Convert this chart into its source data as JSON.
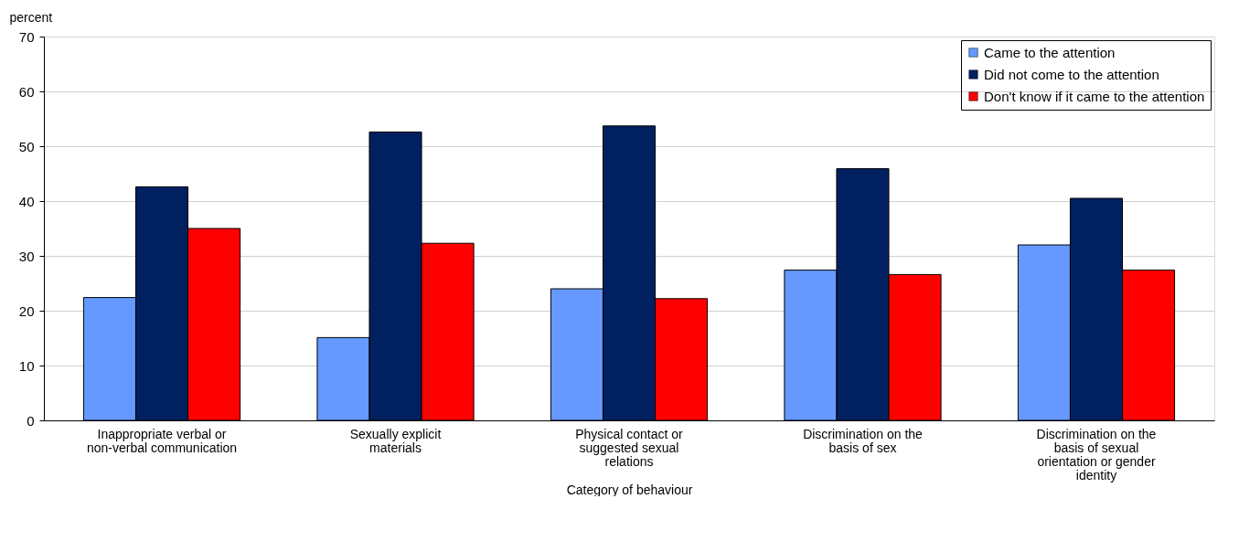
{
  "chart_data": {
    "type": "bar",
    "xlabel": "Category of behaviour",
    "ylabel": "percent",
    "categories": [
      "Inappropriate verbal or non-verbal communication",
      "Sexually explicit materials",
      "Physical contact or suggested sexual relations",
      "Discrimination on the basis of sex",
      "Discrimination on the basis of sexual orientation or gender identity"
    ],
    "series": [
      {
        "name": "Came to the attention",
        "color": "#6699ff",
        "values": [
          22.4,
          15.1,
          24.0,
          27.4,
          32.0
        ]
      },
      {
        "name": "Did not come to the attention",
        "color": "#002060",
        "values": [
          42.6,
          52.6,
          53.7,
          45.9,
          40.5
        ]
      },
      {
        "name": "Don't know if it came to the attention",
        "color": "#ff0000",
        "values": [
          35.0,
          32.3,
          22.2,
          26.6,
          27.4
        ]
      }
    ],
    "ylim": [
      0,
      70
    ],
    "yticks": [
      0,
      10,
      20,
      30,
      40,
      50,
      60,
      70
    ],
    "grid": "y",
    "legend": "top right"
  }
}
